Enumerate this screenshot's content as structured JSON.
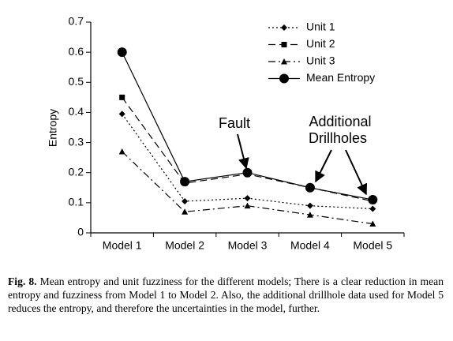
{
  "chart_data": {
    "type": "line",
    "y_label": "Entropy",
    "categories": [
      "Model 1",
      "Model 2",
      "Model 3",
      "Model 4",
      "Model 5"
    ],
    "series": [
      {
        "name": "Unit 1",
        "color": "#000000",
        "dash": "2,3",
        "marker": "diamond",
        "values": [
          0.395,
          0.105,
          0.115,
          0.09,
          0.08
        ]
      },
      {
        "name": "Unit 2",
        "color": "#000000",
        "dash": "9,5",
        "marker": "square",
        "values": [
          0.45,
          0.165,
          0.195,
          0.15,
          0.105
        ]
      },
      {
        "name": "Unit 3",
        "color": "#000000",
        "dash": "9,4,2,4",
        "marker": "triangle",
        "values": [
          0.27,
          0.07,
          0.09,
          0.06,
          0.03
        ]
      },
      {
        "name": "Mean Entropy",
        "color": "#000000",
        "dash": "none",
        "marker": "circle",
        "values": [
          0.6,
          0.17,
          0.2,
          0.15,
          0.11
        ]
      }
    ],
    "ylim": [
      0,
      0.7
    ],
    "yticks": [
      0,
      0.1,
      0.2,
      0.3,
      0.4,
      0.5,
      0.6,
      0.7
    ],
    "annotations": [
      [
        "Fault"
      ],
      [
        "Additional",
        "Drillholes"
      ]
    ]
  },
  "caption": {
    "label": "Fig. 8.",
    "text": "Mean entropy and unit fuzziness for the different models; There is a clear reduction in mean entropy and fuzziness from Model 1 to Model 2. Also, the additional drillhole data used for Model 5 reduces the entropy, and therefore the uncertainties in the model, further."
  }
}
